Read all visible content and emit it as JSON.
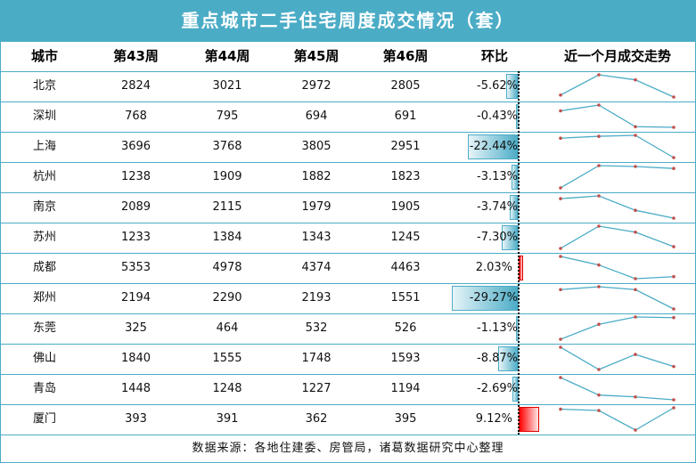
{
  "title": "重点城市二手住宅周度成交情况（套）",
  "headers": {
    "city": "城市",
    "w43": "第43周",
    "w44": "第44周",
    "w45": "第45周",
    "w46": "第46周",
    "mom": "环比",
    "trend": "近一个月成交走势"
  },
  "rows": [
    {
      "city": "北京",
      "w43": "2824",
      "w44": "3021",
      "w45": "2972",
      "w46": "2805",
      "mom": "-5.62%"
    },
    {
      "city": "深圳",
      "w43": "768",
      "w44": "795",
      "w45": "694",
      "w46": "691",
      "mom": "-0.43%"
    },
    {
      "city": "上海",
      "w43": "3696",
      "w44": "3768",
      "w45": "3805",
      "w46": "2951",
      "mom": "-22.44%"
    },
    {
      "city": "杭州",
      "w43": "1238",
      "w44": "1909",
      "w45": "1882",
      "w46": "1823",
      "mom": "-3.13%"
    },
    {
      "city": "南京",
      "w43": "2089",
      "w44": "2115",
      "w45": "1979",
      "w46": "1905",
      "mom": "-3.74%"
    },
    {
      "city": "苏州",
      "w43": "1233",
      "w44": "1384",
      "w45": "1343",
      "w46": "1245",
      "mom": "-7.30%"
    },
    {
      "city": "成都",
      "w43": "5353",
      "w44": "4978",
      "w45": "4374",
      "w46": "4463",
      "mom": "2.03%"
    },
    {
      "city": "郑州",
      "w43": "2194",
      "w44": "2290",
      "w45": "2193",
      "w46": "1551",
      "mom": "-29.27%"
    },
    {
      "city": "东莞",
      "w43": "325",
      "w44": "464",
      "w45": "532",
      "w46": "526",
      "mom": "-1.13%"
    },
    {
      "city": "佛山",
      "w43": "1840",
      "w44": "1555",
      "w45": "1748",
      "w46": "1593",
      "mom": "-8.87%"
    },
    {
      "city": "青岛",
      "w43": "1448",
      "w44": "1248",
      "w45": "1227",
      "w46": "1194",
      "mom": "-2.69%"
    },
    {
      "city": "厦门",
      "w43": "393",
      "w44": "391",
      "w45": "362",
      "w46": "395",
      "mom": "9.12%"
    }
  ],
  "footer": "数据来源：各地住建委、房管局，诸葛数据研究中心整理",
  "colors": {
    "accent": "#4BACC6",
    "negative_bar": "#4BACC6",
    "positive_bar": "#FF0000",
    "marker": "#C0504D"
  },
  "chart_data": {
    "type": "table",
    "title": "重点城市二手住宅周度成交情况（套）",
    "columns": [
      "城市",
      "第43周",
      "第44周",
      "第45周",
      "第46周",
      "环比",
      "近一个月成交走势"
    ],
    "categories": [
      "第43周",
      "第44周",
      "第45周",
      "第46周"
    ],
    "series": [
      {
        "name": "北京",
        "values": [
          2824,
          3021,
          2972,
          2805
        ],
        "mom": -5.62
      },
      {
        "name": "深圳",
        "values": [
          768,
          795,
          694,
          691
        ],
        "mom": -0.43
      },
      {
        "name": "上海",
        "values": [
          3696,
          3768,
          3805,
          2951
        ],
        "mom": -22.44
      },
      {
        "name": "杭州",
        "values": [
          1238,
          1909,
          1882,
          1823
        ],
        "mom": -3.13
      },
      {
        "name": "南京",
        "values": [
          2089,
          2115,
          1979,
          1905
        ],
        "mom": -3.74
      },
      {
        "name": "苏州",
        "values": [
          1233,
          1384,
          1343,
          1245
        ],
        "mom": -7.3
      },
      {
        "name": "成都",
        "values": [
          5353,
          4978,
          4374,
          4463
        ],
        "mom": 2.03
      },
      {
        "name": "郑州",
        "values": [
          2194,
          2290,
          2193,
          1551
        ],
        "mom": -29.27
      },
      {
        "name": "东莞",
        "values": [
          325,
          464,
          532,
          526
        ],
        "mom": -1.13
      },
      {
        "name": "佛山",
        "values": [
          1840,
          1555,
          1748,
          1593
        ],
        "mom": -8.87
      },
      {
        "name": "青岛",
        "values": [
          1448,
          1248,
          1227,
          1194
        ],
        "mom": -2.69
      },
      {
        "name": "厦门",
        "values": [
          393,
          391,
          362,
          395
        ],
        "mom": 9.12
      }
    ],
    "annotations": [
      "数据来源：各地住建委、房管局，诸葛数据研究中心整理"
    ]
  }
}
